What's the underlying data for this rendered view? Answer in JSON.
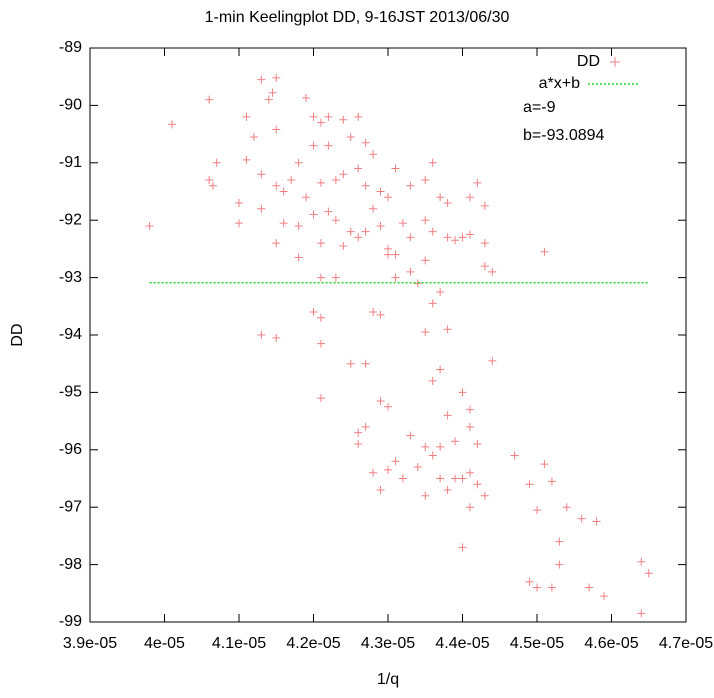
{
  "chart_data": {
    "type": "scatter",
    "title": "1-min Keelingplot DD, 9-16JST 2013/06/30",
    "x_label": "1/q",
    "y_label": "DD",
    "xlim": [
      3.9e-05,
      4.7e-05
    ],
    "ylim": [
      -99,
      -89
    ],
    "xticks": [
      {
        "value": 3.9e-05,
        "label": "3.9e-05"
      },
      {
        "value": 4e-05,
        "label": "4e-05"
      },
      {
        "value": 4.1e-05,
        "label": "4.1e-05"
      },
      {
        "value": 4.2e-05,
        "label": "4.2e-05"
      },
      {
        "value": 4.3e-05,
        "label": "4.3e-05"
      },
      {
        "value": 4.4e-05,
        "label": "4.4e-05"
      },
      {
        "value": 4.5e-05,
        "label": "4.5e-05"
      },
      {
        "value": 4.6e-05,
        "label": "4.6e-05"
      },
      {
        "value": 4.7e-05,
        "label": "4.7e-05"
      }
    ],
    "yticks": [
      -89,
      -90,
      -91,
      -92,
      -93,
      -94,
      -95,
      -96,
      -97,
      -98,
      -99
    ],
    "annotations": [
      "a=-9",
      "b=-93.0894"
    ],
    "series": [
      {
        "name": "DD",
        "color": "#f08080",
        "x": [
          4.13e-05,
          4.15e-05,
          4.06e-05,
          4.01e-05,
          4.14e-05,
          4.145e-05,
          4.19e-05,
          4.12e-05,
          4.11e-05,
          4.15e-05,
          4.2e-05,
          4.21e-05,
          4.22e-05,
          4.24e-05,
          4.26e-05,
          4.25e-05,
          4.27e-05,
          4.28e-05,
          4.2e-05,
          4.22e-05,
          4.18e-05,
          4.11e-05,
          4.07e-05,
          4.06e-05,
          4.065e-05,
          4.13e-05,
          4.15e-05,
          4.16e-05,
          4.17e-05,
          4.19e-05,
          4.21e-05,
          4.23e-05,
          4.24e-05,
          4.26e-05,
          4.27e-05,
          4.29e-05,
          4.3e-05,
          4.31e-05,
          4.33e-05,
          4.35e-05,
          4.36e-05,
          4.37e-05,
          4.38e-05,
          4.41e-05,
          4.42e-05,
          4.43e-05,
          4.1e-05,
          4.1e-05,
          3.98e-05,
          4.13e-05,
          4.16e-05,
          4.18e-05,
          4.2e-05,
          4.22e-05,
          4.23e-05,
          4.25e-05,
          4.26e-05,
          4.28e-05,
          4.29e-05,
          4.3e-05,
          4.31e-05,
          4.32e-05,
          4.33e-05,
          4.35e-05,
          4.36e-05,
          4.38e-05,
          4.39e-05,
          4.4e-05,
          4.41e-05,
          4.43e-05,
          4.15e-05,
          4.18e-05,
          4.21e-05,
          4.24e-05,
          4.27e-05,
          4.3e-05,
          4.33e-05,
          4.35e-05,
          4.43e-05,
          4.44e-05,
          4.51e-05,
          4.21e-05,
          4.23e-05,
          4.31e-05,
          4.34e-05,
          4.37e-05,
          4.36e-05,
          4.28e-05,
          4.29e-05,
          4.2e-05,
          4.21e-05,
          4.13e-05,
          4.15e-05,
          4.21e-05,
          4.35e-05,
          4.38e-05,
          4.44e-05,
          4.25e-05,
          4.27e-05,
          4.36e-05,
          4.37e-05,
          4.21e-05,
          4.29e-05,
          4.3e-05,
          4.4e-05,
          4.41e-05,
          4.38e-05,
          4.26e-05,
          4.27e-05,
          4.26e-05,
          4.33e-05,
          4.35e-05,
          4.36e-05,
          4.37e-05,
          4.39e-05,
          4.41e-05,
          4.42e-05,
          4.31e-05,
          4.3e-05,
          4.28e-05,
          4.29e-05,
          4.32e-05,
          4.34e-05,
          4.35e-05,
          4.37e-05,
          4.38e-05,
          4.39e-05,
          4.4e-05,
          4.41e-05,
          4.42e-05,
          4.43e-05,
          4.41e-05,
          4.4e-05,
          4.47e-05,
          4.49e-05,
          4.5e-05,
          4.51e-05,
          4.52e-05,
          4.54e-05,
          4.56e-05,
          4.58e-05,
          4.53e-05,
          4.53e-05,
          4.49e-05,
          4.5e-05,
          4.52e-05,
          4.57e-05,
          4.59e-05,
          4.64e-05,
          4.65e-05,
          4.64e-05
        ],
        "values": [
          -89.55,
          -89.52,
          -89.9,
          -90.33,
          -89.9,
          -89.78,
          -89.87,
          -90.55,
          -90.2,
          -90.42,
          -90.2,
          -90.3,
          -90.2,
          -90.25,
          -90.2,
          -90.55,
          -90.65,
          -90.85,
          -90.7,
          -90.7,
          -91.0,
          -90.95,
          -91.0,
          -91.3,
          -91.4,
          -91.2,
          -91.4,
          -91.5,
          -91.3,
          -91.6,
          -91.35,
          -91.3,
          -91.2,
          -91.1,
          -91.4,
          -91.5,
          -91.6,
          -91.1,
          -91.4,
          -91.3,
          -91.0,
          -91.6,
          -91.7,
          -91.6,
          -91.35,
          -91.75,
          -91.7,
          -92.05,
          -92.1,
          -91.8,
          -92.05,
          -92.1,
          -91.9,
          -91.85,
          -92.0,
          -92.2,
          -92.3,
          -91.8,
          -92.1,
          -92.5,
          -92.6,
          -92.05,
          -92.3,
          -92.0,
          -92.2,
          -92.3,
          -92.35,
          -92.3,
          -92.25,
          -92.4,
          -92.4,
          -92.65,
          -92.4,
          -92.45,
          -92.2,
          -92.6,
          -92.9,
          -92.7,
          -92.8,
          -92.9,
          -92.55,
          -93.0,
          -93.0,
          -93.0,
          -93.1,
          -93.25,
          -93.45,
          -93.6,
          -93.65,
          -93.6,
          -93.7,
          -94.0,
          -94.05,
          -94.15,
          -93.95,
          -93.9,
          -94.45,
          -94.5,
          -94.5,
          -94.8,
          -94.6,
          -95.1,
          -95.15,
          -95.25,
          -95.0,
          -95.3,
          -95.4,
          -95.7,
          -95.6,
          -95.9,
          -95.75,
          -95.95,
          -96.1,
          -95.95,
          -95.85,
          -95.6,
          -95.9,
          -96.2,
          -96.35,
          -96.4,
          -96.7,
          -96.5,
          -96.3,
          -96.8,
          -96.5,
          -96.7,
          -96.5,
          -96.5,
          -96.4,
          -96.6,
          -96.8,
          -97.0,
          -97.7,
          -96.1,
          -96.6,
          -97.05,
          -96.25,
          -96.55,
          -97.0,
          -97.2,
          -97.25,
          -97.6,
          -98.0,
          -98.3,
          -98.4,
          -98.4,
          -98.4,
          -98.55,
          -97.95,
          -98.15,
          -98.85
        ]
      },
      {
        "name": "a*x+b",
        "color": "#00cc00",
        "x": [
          3.98e-05,
          4.65e-05
        ],
        "values": [
          -93.0894,
          -93.0894
        ]
      }
    ]
  }
}
